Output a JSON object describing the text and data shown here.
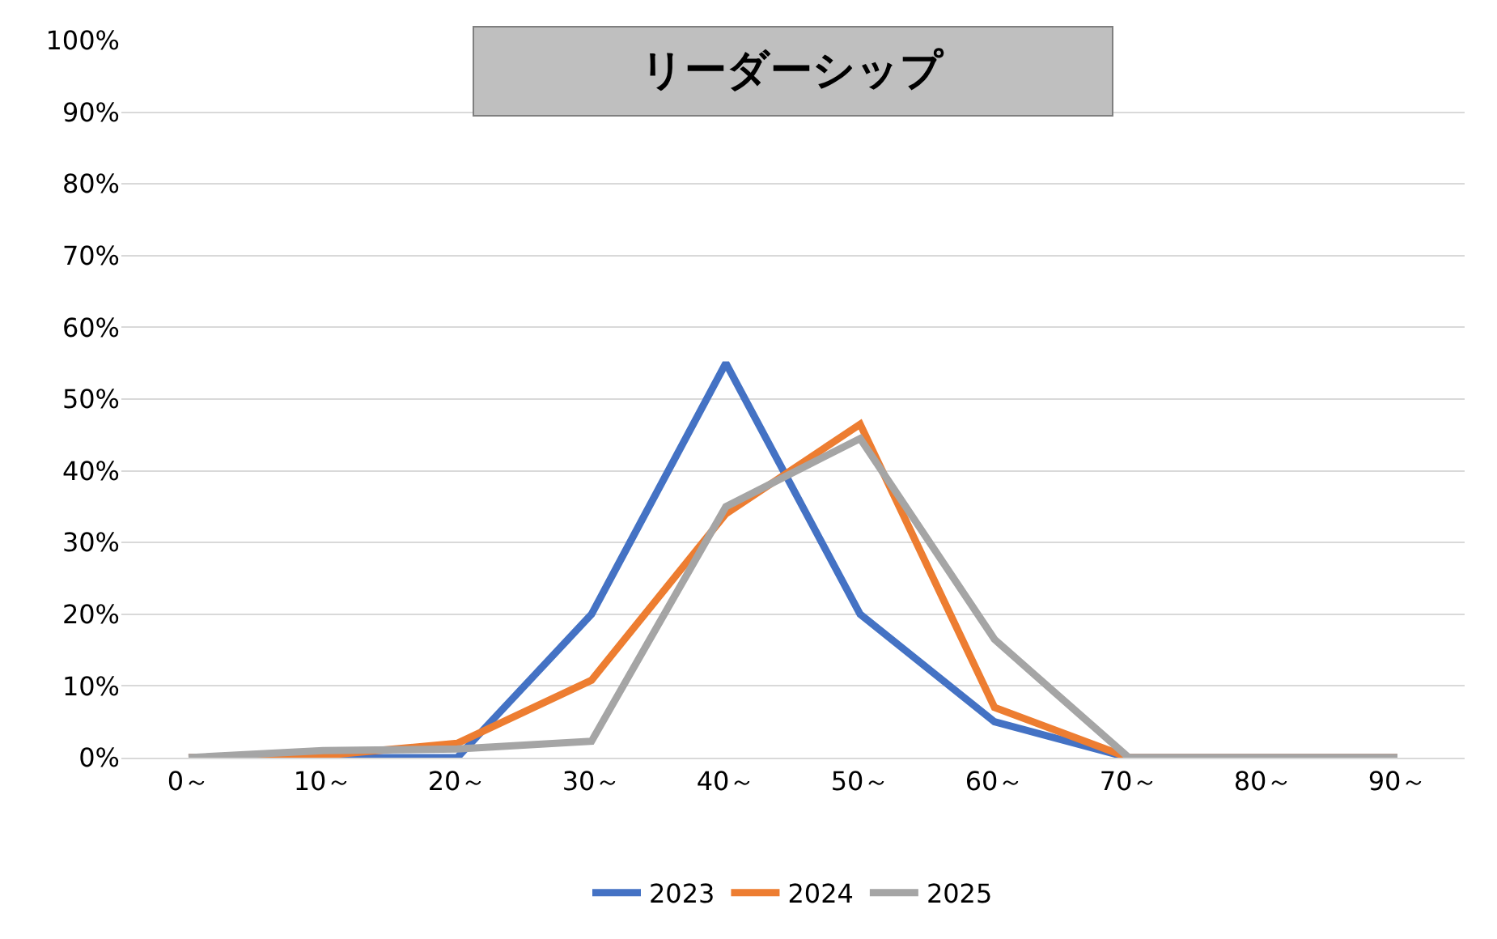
{
  "chart_data": {
    "type": "line",
    "title": "リーダーシップ",
    "categories": [
      "0～",
      "10～",
      "20～",
      "30～",
      "40～",
      "50～",
      "60～",
      "70～",
      "80～",
      "90～"
    ],
    "series": [
      {
        "name": "2023",
        "color": "#4472c4",
        "values": [
          0,
          0,
          0,
          20,
          55,
          20,
          5,
          0,
          0,
          0
        ]
      },
      {
        "name": "2024",
        "color": "#ed7d31",
        "values": [
          0,
          0.3,
          2,
          10.8,
          34,
          46.5,
          7,
          0,
          0,
          0
        ]
      },
      {
        "name": "2025",
        "color": "#a5a5a5",
        "values": [
          0,
          1,
          1.2,
          2.3,
          35,
          44.5,
          16.5,
          0,
          0,
          0
        ]
      }
    ],
    "ylim": [
      0,
      100
    ],
    "yticks": [
      {
        "value": 0,
        "label": "0%"
      },
      {
        "value": 10,
        "label": "10%"
      },
      {
        "value": 20,
        "label": "20%"
      },
      {
        "value": 30,
        "label": "30%"
      },
      {
        "value": 40,
        "label": "40%"
      },
      {
        "value": 50,
        "label": "50%"
      },
      {
        "value": 60,
        "label": "60%"
      },
      {
        "value": 70,
        "label": "70%"
      },
      {
        "value": 80,
        "label": "80%"
      },
      {
        "value": 90,
        "label": "90%"
      },
      {
        "value": 100,
        "label": "100%"
      }
    ],
    "grid": "y",
    "legend": "bottom",
    "marker": "none",
    "line_style": "solid"
  }
}
